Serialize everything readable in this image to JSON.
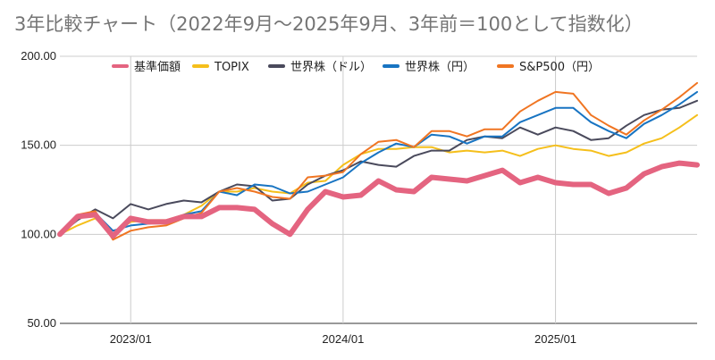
{
  "chart_data": {
    "type": "line",
    "title": "3年比較チャート（2022年9月～2025年9月、3年前＝100として指数化）",
    "xlabel": "",
    "ylabel": "",
    "ylim": [
      50,
      200
    ],
    "yticks": [
      "50.00",
      "100.00",
      "150.00",
      "200.00"
    ],
    "xticks": [
      "2023/01",
      "2024/01",
      "2025/01"
    ],
    "x": [
      "2022/09",
      "2022/10",
      "2022/11",
      "2022/12",
      "2023/01",
      "2023/02",
      "2023/03",
      "2023/04",
      "2023/05",
      "2023/06",
      "2023/07",
      "2023/08",
      "2023/09",
      "2023/10",
      "2023/11",
      "2023/12",
      "2024/01",
      "2024/02",
      "2024/03",
      "2024/04",
      "2024/05",
      "2024/06",
      "2024/07",
      "2024/08",
      "2024/09",
      "2024/10",
      "2024/11",
      "2024/12",
      "2025/01",
      "2025/02",
      "2025/03",
      "2025/04",
      "2025/05",
      "2025/06",
      "2025/07",
      "2025/08",
      "2025/09"
    ],
    "grid": true,
    "legend_position": "top",
    "series": [
      {
        "name": "基準価額",
        "color": "#e46480",
        "width": 6,
        "values": [
          100,
          110,
          111,
          99,
          109,
          107,
          107,
          110,
          110,
          115,
          115,
          114,
          106,
          100,
          114,
          124,
          121,
          122,
          130,
          125,
          124,
          132,
          131,
          130,
          133,
          136,
          129,
          132,
          129,
          128,
          128,
          123,
          126,
          134,
          138,
          140,
          139
        ]
      },
      {
        "name": "TOPIX",
        "color": "#f5bf1b",
        "width": 2,
        "values": [
          100,
          105,
          109,
          100,
          107,
          108,
          108,
          111,
          116,
          124,
          124,
          126,
          124,
          123,
          129,
          130,
          139,
          145,
          148,
          148,
          149,
          149,
          146,
          147,
          146,
          147,
          144,
          148,
          150,
          148,
          147,
          144,
          146,
          151,
          154,
          160,
          167
        ]
      },
      {
        "name": "世界株（ドル）",
        "color": "#4a4a5c",
        "width": 2,
        "values": [
          100,
          108,
          114,
          109,
          117,
          114,
          117,
          119,
          118,
          124,
          128,
          127,
          119,
          120,
          128,
          133,
          136,
          141,
          139,
          138,
          144,
          147,
          147,
          153,
          155,
          154,
          160,
          156,
          160,
          158,
          153,
          154,
          161,
          167,
          170,
          171,
          175
        ]
      },
      {
        "name": "世界株（円）",
        "color": "#1874c2",
        "width": 2,
        "values": [
          100,
          109,
          112,
          102,
          105,
          106,
          107,
          111,
          113,
          124,
          122,
          128,
          127,
          123,
          124,
          128,
          132,
          140,
          146,
          151,
          149,
          156,
          155,
          151,
          155,
          155,
          163,
          167,
          171,
          171,
          163,
          158,
          154,
          162,
          167,
          173,
          180
        ]
      },
      {
        "name": "S&P500（円）",
        "color": "#f07522",
        "width": 2,
        "values": [
          100,
          111,
          113,
          97,
          102,
          104,
          105,
          109,
          112,
          124,
          126,
          124,
          121,
          120,
          132,
          133,
          135,
          145,
          152,
          153,
          149,
          158,
          158,
          155,
          159,
          159,
          169,
          175,
          180,
          179,
          167,
          161,
          156,
          164,
          170,
          177,
          185
        ]
      }
    ]
  }
}
